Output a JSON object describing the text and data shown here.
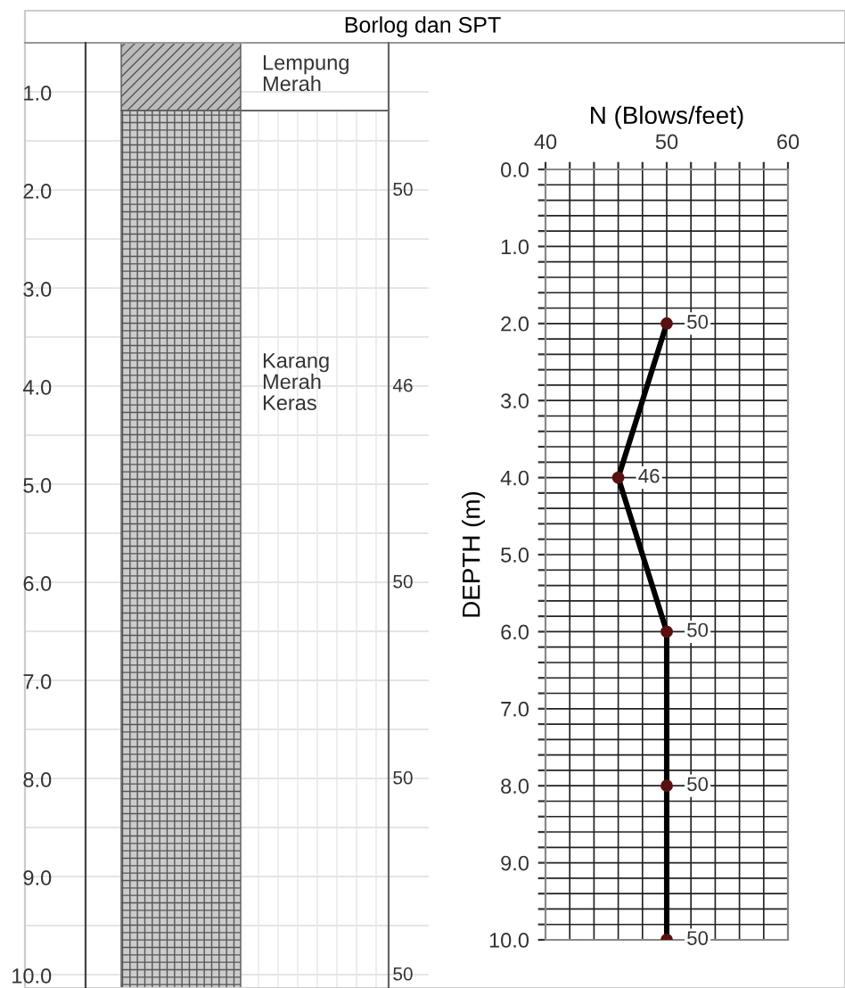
{
  "chart_data": [
    {
      "type": "heatmap",
      "title": "Borlog dan SPT",
      "categories": [
        null
      ],
      "y_categories": [
        "1.0",
        "2.0",
        "3.0",
        "4.0",
        "5.0",
        "6.0",
        "7.0",
        "8.0",
        "9.0",
        "10.0"
      ],
      "cells": [
        [
          null
        ],
        [
          50
        ],
        [
          null
        ],
        [
          46
        ],
        [
          null
        ],
        [
          50
        ],
        [
          null
        ],
        [
          50
        ],
        [
          null
        ],
        [
          50
        ]
      ],
      "annotations": [
        "Lempung\nMerah",
        "Karang\nMerah\nKeras"
      ],
      "data_labels": true,
      "grid": true
    },
    {
      "type": "line",
      "xlabel": "N (Blows/feet)",
      "ylabel": "DEPTH (m)",
      "x": [
        2.0,
        4.0,
        6.0,
        8.0,
        10.0
      ],
      "series": [
        {
          "color": "#000000",
          "values": [
            50,
            46,
            50,
            50,
            50
          ]
        }
      ],
      "orientation": "horizontal",
      "marker": "circle",
      "data_labels": true,
      "grid": true,
      "xlim": [
        40,
        60
      ],
      "ylim": [
        10,
        0
      ],
      "xticks": [
        40,
        {
          "value": 42,
          "label": null
        },
        {
          "value": 44,
          "label": null
        },
        {
          "value": 46,
          "label": null
        },
        {
          "value": 48,
          "label": null
        },
        50,
        {
          "value": 52,
          "label": null
        },
        {
          "value": 54,
          "label": null
        },
        {
          "value": 56,
          "label": null
        },
        {
          "value": 58,
          "label": null
        },
        60
      ],
      "yticks": [
        {
          "value": 0,
          "label": "0.0"
        },
        {
          "value": 0.2,
          "label": null
        },
        {
          "value": 0.4,
          "label": null
        },
        {
          "value": 0.6,
          "label": null
        },
        {
          "value": 0.8,
          "label": null
        },
        {
          "value": 1,
          "label": "1.0"
        },
        {
          "value": 1.2,
          "label": null
        },
        {
          "value": 1.4,
          "label": null
        },
        {
          "value": 1.6,
          "label": null
        },
        {
          "value": 1.8,
          "label": null
        },
        {
          "value": 2,
          "label": "2.0"
        },
        {
          "value": 2.2,
          "label": null
        },
        {
          "value": 2.4,
          "label": null
        },
        {
          "value": 2.6,
          "label": null
        },
        {
          "value": 2.8,
          "label": null
        },
        {
          "value": 3,
          "label": "3.0"
        },
        {
          "value": 3.2,
          "label": null
        },
        {
          "value": 3.4,
          "label": null
        },
        {
          "value": 3.6,
          "label": null
        },
        {
          "value": 3.8,
          "label": null
        },
        {
          "value": 4,
          "label": "4.0"
        },
        {
          "value": 4.2,
          "label": null
        },
        {
          "value": 4.4,
          "label": null
        },
        {
          "value": 4.6,
          "label": null
        },
        {
          "value": 4.8,
          "label": null
        },
        {
          "value": 5,
          "label": "5.0"
        },
        {
          "value": 5.2,
          "label": null
        },
        {
          "value": 5.4,
          "label": null
        },
        {
          "value": 5.6,
          "label": null
        },
        {
          "value": 5.8,
          "label": null
        },
        {
          "value": 6,
          "label": "6.0"
        },
        {
          "value": 6.2,
          "label": null
        },
        {
          "value": 6.4,
          "label": null
        },
        {
          "value": 6.6,
          "label": null
        },
        {
          "value": 6.8,
          "label": null
        },
        {
          "value": 7,
          "label": "7.0"
        },
        {
          "value": 7.2,
          "label": null
        },
        {
          "value": 7.4,
          "label": null
        },
        {
          "value": 7.6,
          "label": null
        },
        {
          "value": 7.8,
          "label": null
        },
        {
          "value": 8,
          "label": "8.0"
        },
        {
          "value": 8.2,
          "label": null
        },
        {
          "value": 8.4,
          "label": null
        },
        {
          "value": 8.6,
          "label": null
        },
        {
          "value": 8.8,
          "label": null
        },
        {
          "value": 9,
          "label": "9.0"
        },
        {
          "value": 9.2,
          "label": null
        },
        {
          "value": 9.4,
          "label": null
        },
        {
          "value": 9.6,
          "label": null
        },
        {
          "value": 9.8,
          "label": null
        },
        {
          "value": 10,
          "label": "10.0"
        }
      ]
    }
  ]
}
